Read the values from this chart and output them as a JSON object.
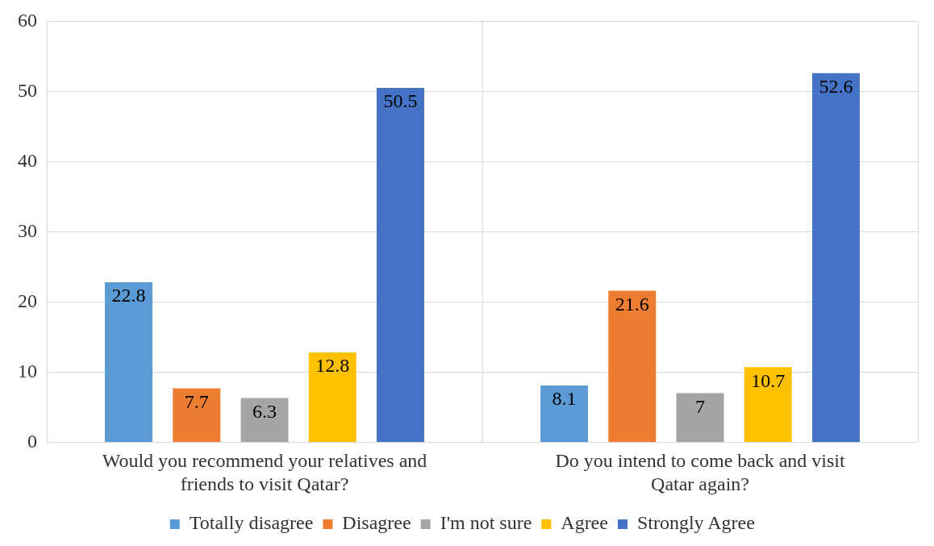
{
  "chart_data": {
    "type": "bar",
    "categories": [
      "Would you recommend your relatives and friends to visit Qatar?",
      "Do you intend to come back and visit Qatar again?"
    ],
    "series": [
      {
        "name": "Totally disagree",
        "color": "#5b9bd5",
        "values": [
          22.8,
          8.1
        ]
      },
      {
        "name": "Disagree",
        "color": "#ed7d31",
        "values": [
          7.7,
          21.6
        ]
      },
      {
        "name": "I'm not sure",
        "color": "#a5a5a5",
        "values": [
          6.3,
          7
        ]
      },
      {
        "name": "Agree",
        "color": "#ffc000",
        "values": [
          12.8,
          10.7
        ]
      },
      {
        "name": "Strongly Agree",
        "color": "#4472c4",
        "values": [
          50.5,
          52.6
        ]
      }
    ],
    "ylim": [
      0,
      60
    ],
    "yticks": [
      0,
      10,
      20,
      30,
      40,
      50,
      60
    ],
    "grid": true,
    "legend": "bottom",
    "data_labels": true
  }
}
